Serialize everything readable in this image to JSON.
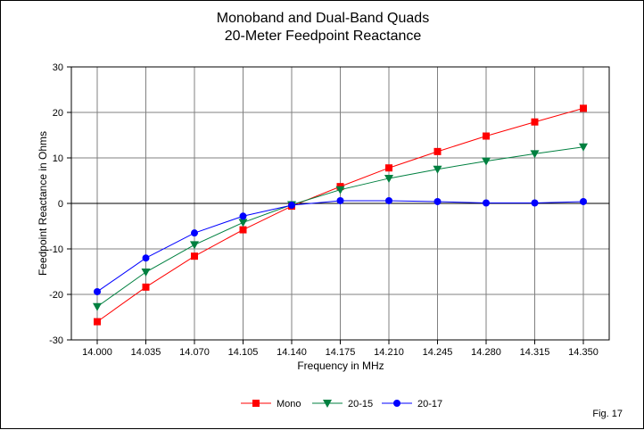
{
  "chart_data": {
    "type": "line",
    "title": "Monoband and Dual-Band Quads",
    "subtitle": "20-Meter Feedpoint Reactance",
    "xlabel": "Frequency in MHz",
    "ylabel": "Feedpoint Reactance in Ohms",
    "categories": [
      "14.000",
      "14.035",
      "14.070",
      "14.105",
      "14.140",
      "14.175",
      "14.210",
      "14.245",
      "14.280",
      "14.315",
      "14.350"
    ],
    "ylim": [
      -30,
      30
    ],
    "yticks": [
      -30,
      -20,
      -10,
      0,
      10,
      20,
      30
    ],
    "ytick_labels": [
      "-30",
      "-20",
      "-10",
      "0",
      "10",
      "20",
      "30"
    ],
    "grid": true,
    "legend_position": "bottom-center",
    "series": [
      {
        "name": "Mono",
        "color": "#ff0000",
        "marker": "square",
        "values": [
          -26.0,
          -18.4,
          -11.6,
          -5.8,
          -0.6,
          3.7,
          7.8,
          11.4,
          14.8,
          17.9,
          20.9
        ]
      },
      {
        "name": "20-15",
        "color": "#008040",
        "marker": "triangle-down",
        "values": [
          -22.7,
          -15.1,
          -9.1,
          -4.2,
          -0.3,
          3.0,
          5.5,
          7.5,
          9.3,
          10.9,
          12.4
        ]
      },
      {
        "name": "20-17",
        "color": "#0000ff",
        "marker": "circle",
        "values": [
          -19.4,
          -12.0,
          -6.5,
          -2.8,
          -0.4,
          0.6,
          0.6,
          0.4,
          0.1,
          0.1,
          0.4
        ]
      }
    ]
  },
  "figure_label": "Fig. 17"
}
